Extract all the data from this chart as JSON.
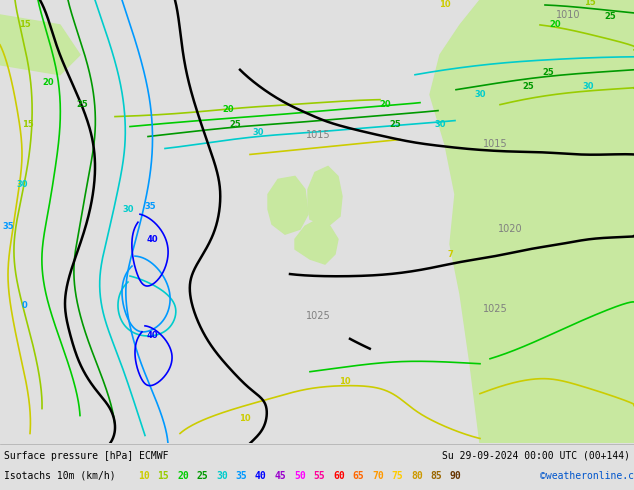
{
  "title_left": "Surface pressure [hPa] ECMWF",
  "title_right": "Su 29-09-2024 00:00 UTC (00+144)",
  "legend_label": "Isotachs 10m (km/h)",
  "copyright": "©weatheronline.co.uk",
  "isotach_values": [
    10,
    15,
    20,
    25,
    30,
    35,
    40,
    45,
    50,
    55,
    60,
    65,
    70,
    75,
    80,
    85,
    90
  ],
  "isotach_colors": [
    "#cccc00",
    "#99cc00",
    "#00cc00",
    "#009900",
    "#00cccc",
    "#0099ff",
    "#0000ff",
    "#9900cc",
    "#ff00ff",
    "#ff0099",
    "#ff0000",
    "#ff6600",
    "#ff9900",
    "#ffcc00",
    "#cc9900",
    "#996600",
    "#663300"
  ],
  "bg_color": "#e0e0e0",
  "land_color_green": "#c8e8a0",
  "land_color_green2": "#d4eeaa",
  "bottom_bg": "#ffffff",
  "pressure_color": "#808080",
  "black_line_color": "#000000",
  "copyright_color": "#0055cc"
}
